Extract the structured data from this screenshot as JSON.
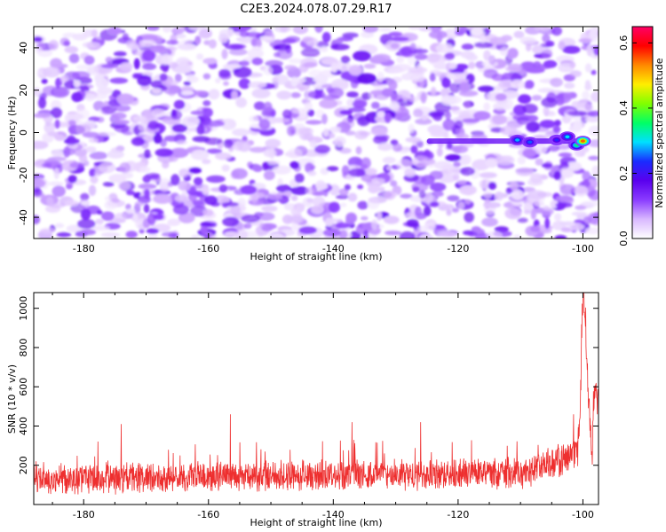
{
  "title": "C2E3.2024.078.07.29.R17",
  "colors": {
    "snr_line": "#ee2f2f",
    "axis": "#000000",
    "background": "#ffffff"
  },
  "chart_data": [
    {
      "type": "heatmap",
      "xlabel": "Height of straight line (km)",
      "ylabel": "Frequency (Hz)",
      "xlim": [
        -188,
        -97.5
      ],
      "ylim": [
        -50,
        50
      ],
      "x_ticks": [
        "-180",
        "-160",
        "-140",
        "-120",
        "-100"
      ],
      "x_tick_values": [
        -180,
        -160,
        -140,
        -120,
        -100
      ],
      "y_ticks": [
        "-40",
        "-20",
        "0",
        "20",
        "40"
      ],
      "y_tick_values": [
        -40,
        -20,
        0,
        20,
        40
      ],
      "colorbar": {
        "label": "Normalized spectral amplitude",
        "range": [
          0,
          0.65
        ],
        "ticks": [
          "0.0",
          "0.2",
          "0.4",
          "0.6"
        ],
        "tick_values": [
          0,
          0.2,
          0.4,
          0.6
        ],
        "colormap": [
          "#ffffff",
          "#d9b8ff",
          "#8a3cff",
          "#5a00ee",
          "#1a2cff",
          "#00e0ff",
          "#00ff66",
          "#80ff00",
          "#ffee00",
          "#ff8800",
          "#ff0000",
          "#ff0066"
        ]
      },
      "background_speckle": {
        "description_value_range": [
          0.0,
          0.15
        ],
        "dominant_color_range": "white-purple"
      },
      "features": [
        {
          "label": "signal track",
          "x_start": -125,
          "x_end": -100,
          "frequency": -4,
          "amplitude": 0.15
        },
        {
          "label": "blob",
          "x": -110.5,
          "frequency": -3.5,
          "amplitude": 0.28
        },
        {
          "label": "blob",
          "x": -108.5,
          "frequency": -4.5,
          "amplitude": 0.25
        },
        {
          "label": "blob",
          "x": -104.2,
          "frequency": -3.5,
          "amplitude": 0.22
        },
        {
          "label": "blob",
          "x": -102.5,
          "frequency": -2,
          "amplitude": 0.3
        },
        {
          "label": "blob",
          "x": -101.0,
          "frequency": -6,
          "amplitude": 0.35
        },
        {
          "label": "peak",
          "x": -100.0,
          "frequency": -4,
          "amplitude": 0.55
        }
      ]
    },
    {
      "type": "line",
      "xlabel": "Height of straight line (km)",
      "ylabel": "SNR (10 * v/v)",
      "xlim": [
        -188,
        -97.5
      ],
      "ylim": [
        0,
        1080
      ],
      "x_ticks": [
        "-180",
        "-160",
        "-140",
        "-120",
        "-100"
      ],
      "x_tick_values": [
        -180,
        -160,
        -140,
        -120,
        -100
      ],
      "y_ticks": [
        "200",
        "400",
        "600",
        "800",
        "1000"
      ],
      "y_tick_values": [
        200,
        400,
        600,
        800,
        1000
      ],
      "series": [
        {
          "baseline_mean": 130,
          "noise_spread": 70,
          "typical_spike_max": 330,
          "notable_spikes": [
            {
              "x": -156.5,
              "y": 460
            },
            {
              "x": -174,
              "y": 410
            },
            {
              "x": -137,
              "y": 420
            },
            {
              "x": -126,
              "y": 420
            },
            {
              "x": -101.5,
              "y": 460
            }
          ],
          "key_points": [
            {
              "x": -188,
              "y": 130
            },
            {
              "x": -110,
              "y": 160
            },
            {
              "x": -103,
              "y": 230
            },
            {
              "x": -101,
              "y": 280
            },
            {
              "x": -100.5,
              "y": 400
            },
            {
              "x": -100.2,
              "y": 900
            },
            {
              "x": -99.9,
              "y": 1080
            },
            {
              "x": -99.4,
              "y": 760
            },
            {
              "x": -99.0,
              "y": 500
            },
            {
              "x": -98.5,
              "y": 200
            },
            {
              "x": -98.2,
              "y": 620
            },
            {
              "x": -97.7,
              "y": 520
            }
          ]
        }
      ]
    }
  ]
}
